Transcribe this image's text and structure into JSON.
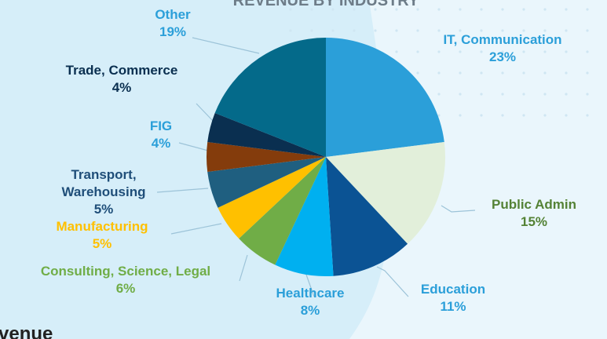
{
  "chart_data": {
    "type": "pie",
    "title": "REVENUE BY INDUSTRY",
    "footer_text": "venue",
    "categories": [
      "IT, Communication",
      "Public Admin",
      "Education",
      "Healthcare",
      "Consulting, Science, Legal",
      "Manufacturing",
      "Transport, Warehousing",
      "FIG",
      "Trade, Commerce",
      "Other"
    ],
    "values": [
      23,
      15,
      11,
      8,
      6,
      5,
      5,
      4,
      4,
      19
    ],
    "value_labels": [
      "23%",
      "15%",
      "11%",
      "8%",
      "6%",
      "5%",
      "5%",
      "4%",
      "4%",
      "19%"
    ],
    "colors": [
      "#2b9fd9",
      "#e2efda",
      "#0b5394",
      "#00b0f0",
      "#70ad47",
      "#ffc000",
      "#1f5f80",
      "#843c0c",
      "#0a2f50",
      "#046a8a"
    ],
    "label_colors": [
      "#2b9fd9",
      "#548235",
      "#2b9fd9",
      "#2b9fd9",
      "#70ad47",
      "#ffc000",
      "#1f4e79",
      "#2b9fd9",
      "#0a2f50",
      "#2b9fd9"
    ]
  }
}
